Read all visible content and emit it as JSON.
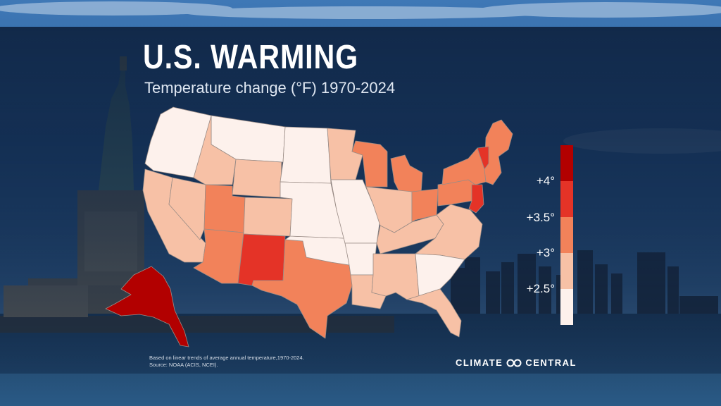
{
  "header": {
    "title": "U.S. WARMING",
    "subtitle": "Temperature change (°F) 1970-2024"
  },
  "legend": {
    "labels": [
      "+4°",
      "+3.5°",
      "+3°",
      "+2.5°"
    ],
    "colors": [
      "#b20000",
      "#e43327",
      "#f2825a",
      "#f7c1a6",
      "#fdf1ec"
    ]
  },
  "footnote": {
    "line1": "Based on linear trends of average annual temperature,1970-2024.",
    "line2": "Source: NOAA (ACIS, NCEI)."
  },
  "brand": {
    "word1": "CLIMATE",
    "word2": "CENTRAL",
    "icon": "climate-central-logo-icon"
  },
  "map": {
    "regions": [
      {
        "name": "pacific-northwest",
        "bin": 0
      },
      {
        "name": "northern-rockies-montana",
        "bin": 0
      },
      {
        "name": "idaho",
        "bin": 1
      },
      {
        "name": "wyoming",
        "bin": 1
      },
      {
        "name": "california",
        "bin": 1
      },
      {
        "name": "nevada",
        "bin": 1
      },
      {
        "name": "utah",
        "bin": 2
      },
      {
        "name": "colorado",
        "bin": 1
      },
      {
        "name": "arizona",
        "bin": 2
      },
      {
        "name": "new-mexico",
        "bin": 3
      },
      {
        "name": "texas",
        "bin": 2
      },
      {
        "name": "oklahoma",
        "bin": 0
      },
      {
        "name": "northern-plains",
        "bin": 0
      },
      {
        "name": "central-plains",
        "bin": 0
      },
      {
        "name": "minnesota",
        "bin": 1
      },
      {
        "name": "iowa-missouri",
        "bin": 0
      },
      {
        "name": "arkansas",
        "bin": 0
      },
      {
        "name": "louisiana",
        "bin": 1
      },
      {
        "name": "wisconsin",
        "bin": 2
      },
      {
        "name": "michigan",
        "bin": 2
      },
      {
        "name": "illinois-indiana",
        "bin": 1
      },
      {
        "name": "ohio",
        "bin": 2
      },
      {
        "name": "kentucky-tennessee",
        "bin": 1
      },
      {
        "name": "virginias-carolinas",
        "bin": 1
      },
      {
        "name": "mississippi-alabama",
        "bin": 1
      },
      {
        "name": "georgia-south-carolina",
        "bin": 0
      },
      {
        "name": "florida",
        "bin": 1
      },
      {
        "name": "pennsylvania",
        "bin": 2
      },
      {
        "name": "new-york",
        "bin": 2
      },
      {
        "name": "new-england",
        "bin": 2
      },
      {
        "name": "vermont",
        "bin": 3
      },
      {
        "name": "new-jersey-delaware",
        "bin": 3
      },
      {
        "name": "alaska",
        "bin": 4
      }
    ]
  }
}
